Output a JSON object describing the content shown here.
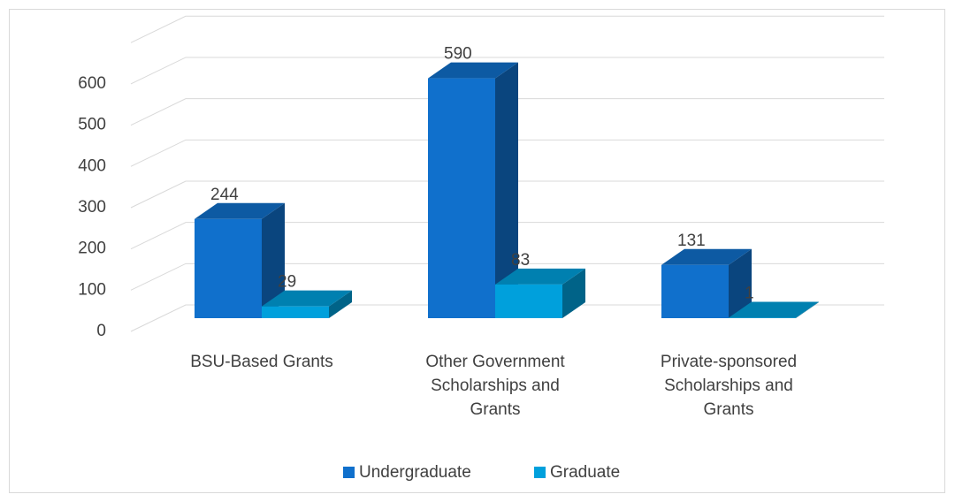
{
  "chart_data": {
    "type": "bar3d",
    "categories": [
      "BSU-Based Grants",
      "Other Government Scholarships and Grants",
      "Private-sponsored Scholarships and Grants"
    ],
    "series": [
      {
        "name": "Undergraduate",
        "color": "#1070cc",
        "values": [
          244,
          590,
          131
        ]
      },
      {
        "name": "Graduate",
        "color": "#00a0dc",
        "values": [
          29,
          83,
          1
        ]
      }
    ],
    "ylim": [
      0,
      700
    ],
    "yticks": [
      0,
      100,
      200,
      300,
      400,
      500,
      600
    ],
    "grid": true,
    "legend": "bottom"
  }
}
